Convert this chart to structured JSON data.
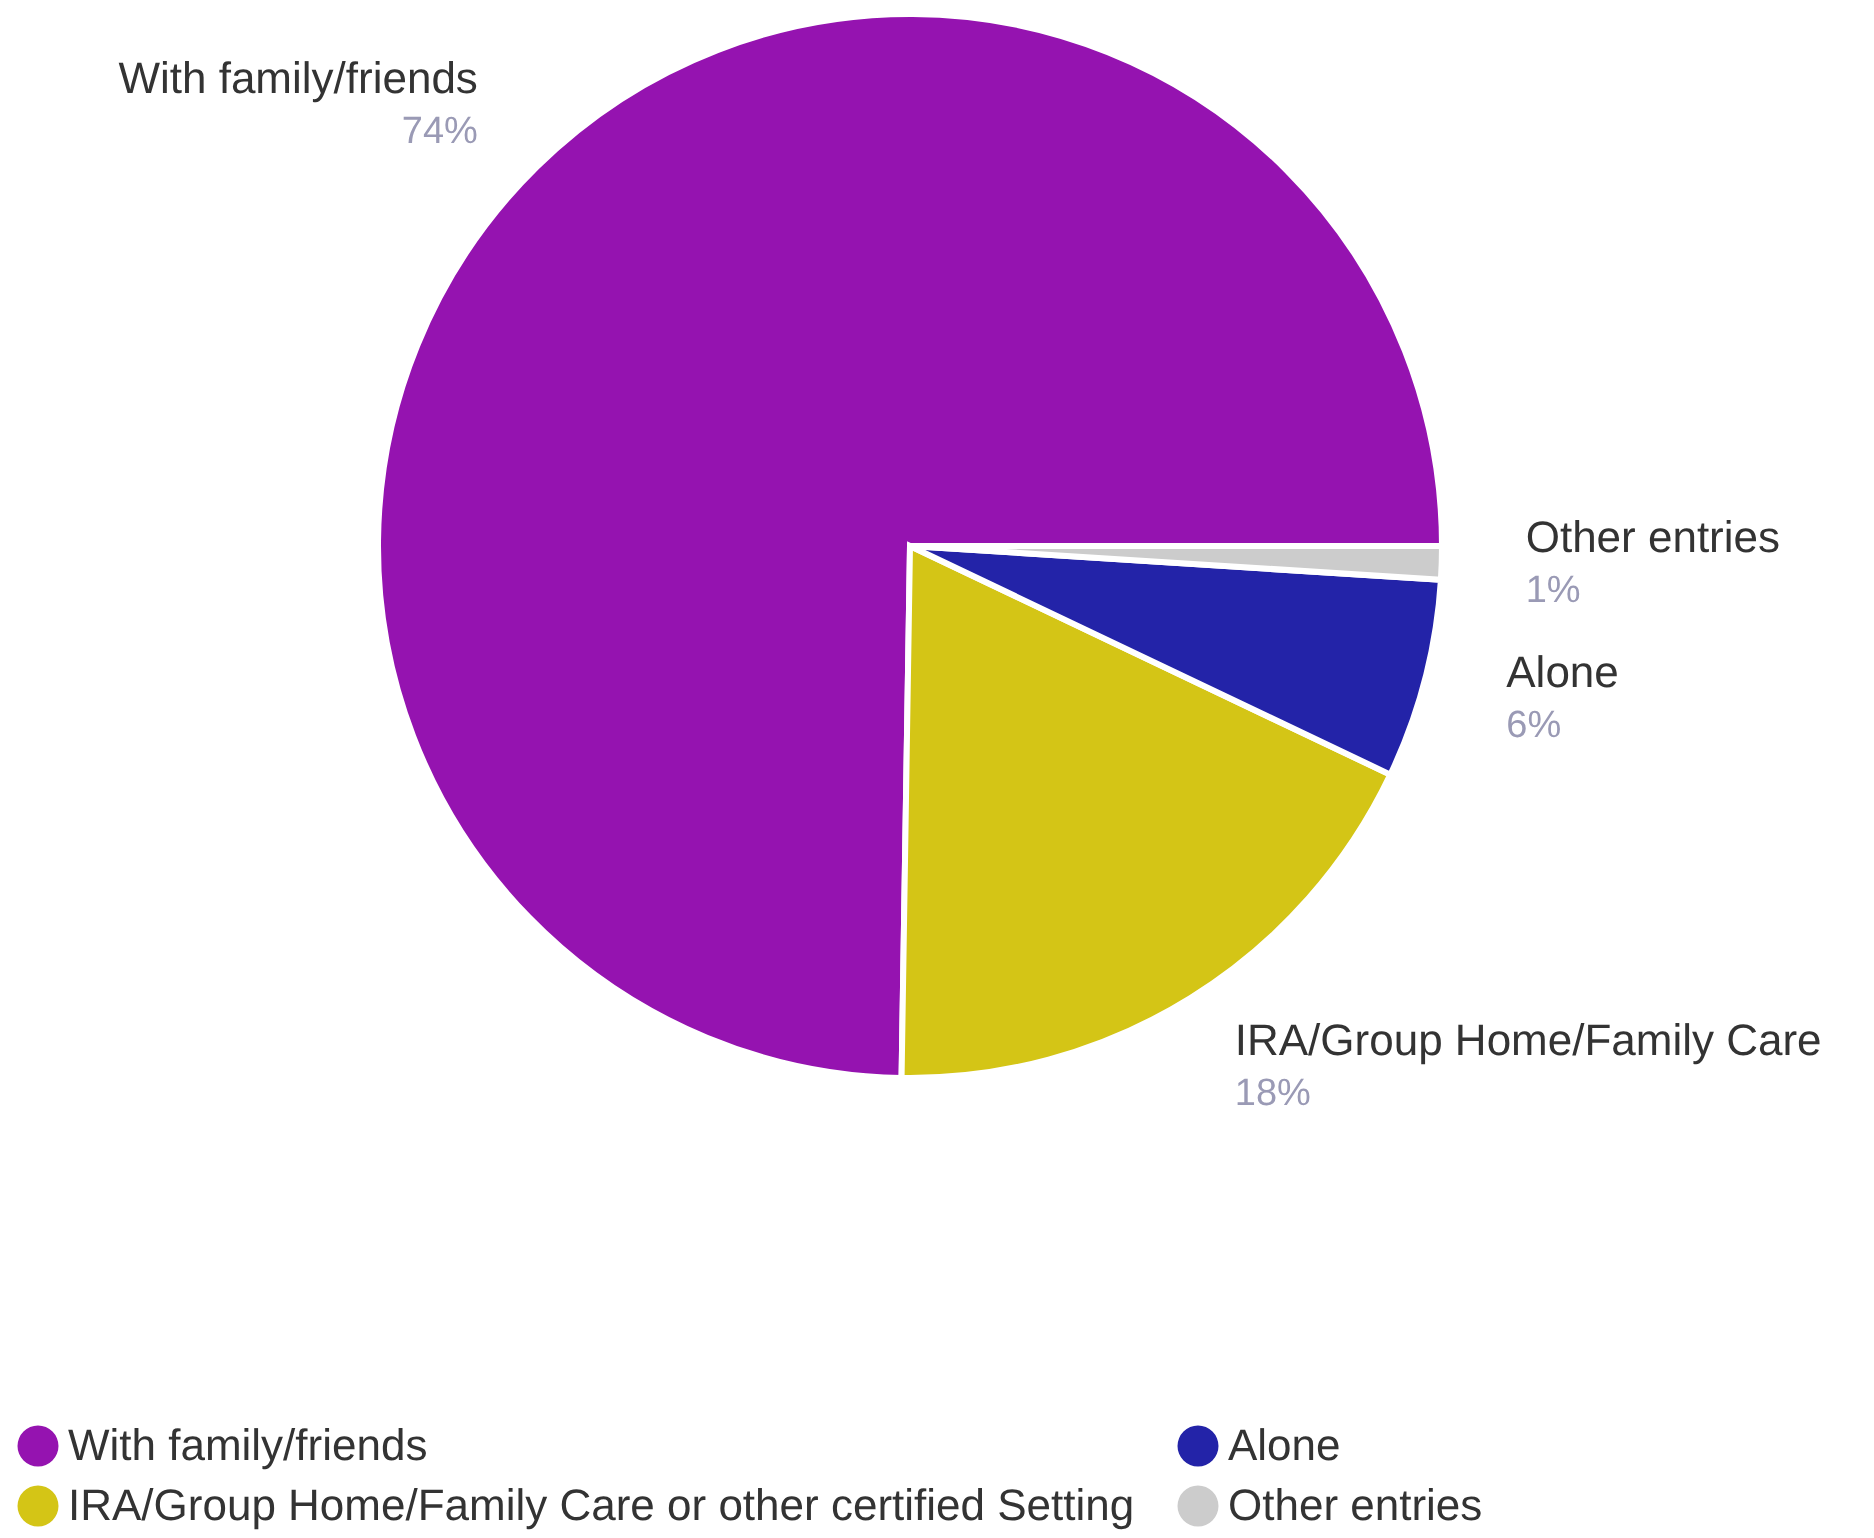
{
  "chart_data": {
    "type": "pie",
    "categories": [
      "With family/friends",
      "IRA/Group Home/Family Care or other certified Setting",
      "Alone",
      "Other entries"
    ],
    "values": [
      74,
      18,
      6,
      1
    ],
    "colors": [
      "#9513b0",
      "#d4c516",
      "#2323a8",
      "#cccccc"
    ],
    "value_labels": [
      "74%",
      "18%",
      "6%",
      "1%"
    ],
    "annotations": [
      {
        "text": "With family/friends",
        "x": "With family/friends"
      },
      {
        "text": "IRA/Group Home/Family Care",
        "x": "IRA/Group Home/Family Care or other certified Setting"
      },
      {
        "text": "Alone",
        "x": "Alone"
      },
      {
        "text": "Other entries",
        "x": "Other entries"
      }
    ],
    "legend": "bottom"
  }
}
